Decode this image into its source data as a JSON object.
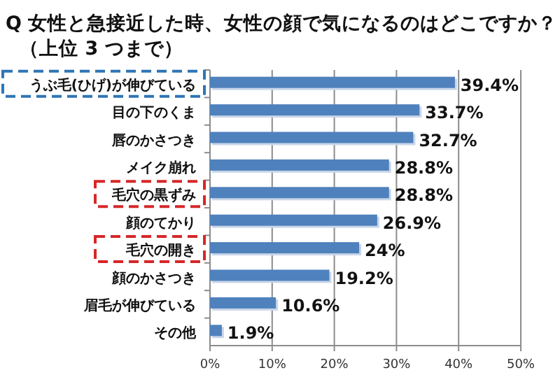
{
  "chart_data": {
    "type": "bar",
    "orientation": "horizontal",
    "title": "Q  女性と急接近した時、女性の顔で気になるのはどこですか？",
    "subtitle": "（上位 3 つまで）",
    "categories": [
      "うぶ毛(ひげ)が伸びている",
      "目の下のくま",
      "唇のかさつき",
      "メイク崩れ",
      "毛穴の黒ずみ",
      "顔のてかり",
      "毛穴の開き",
      "顔のかさつき",
      "眉毛が伸びている",
      "その他"
    ],
    "values": [
      39.4,
      33.7,
      32.7,
      28.8,
      28.8,
      26.9,
      24,
      19.2,
      10.6,
      1.9
    ],
    "value_labels": [
      "39.4%",
      "33.7%",
      "32.7%",
      "28.8%",
      "28.8%",
      "26.9%",
      "24%",
      "19.2%",
      "10.6%",
      "1.9%"
    ],
    "color": "#4f81bd",
    "xlim": [
      0,
      50
    ],
    "xticks": [
      {
        "value": 0,
        "label": "0%"
      },
      {
        "value": 10,
        "label": "10%"
      },
      {
        "value": 20,
        "label": "20%"
      },
      {
        "value": 30,
        "label": "30%"
      },
      {
        "value": 40,
        "label": "40%"
      },
      {
        "value": 50,
        "label": "50%"
      }
    ],
    "grid": "x"
  }
}
